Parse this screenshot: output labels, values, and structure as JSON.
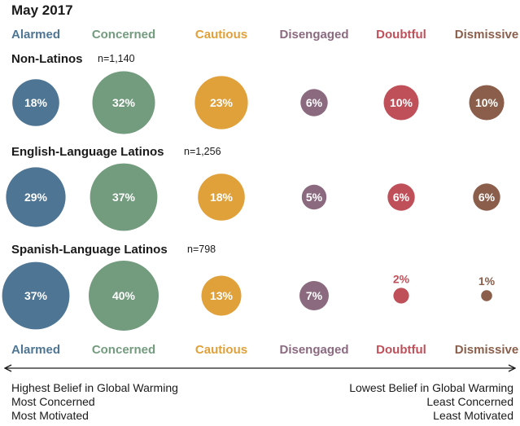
{
  "title": "May 2017",
  "chart_data": {
    "type": "bubble",
    "title": "May 2017",
    "categories": [
      "Alarmed",
      "Concerned",
      "Cautious",
      "Disengaged",
      "Doubtful",
      "Dismissive"
    ],
    "colors": [
      "#4e7594",
      "#739b7e",
      "#e0a03a",
      "#8b6a80",
      "#bf5059",
      "#8a5e4a"
    ],
    "series": [
      {
        "name": "Non-Latinos",
        "n_label": "n=1,140",
        "values": [
          18,
          32,
          23,
          6,
          10,
          10
        ]
      },
      {
        "name": "English-Language Latinos",
        "n_label": "n=1,256",
        "values": [
          29,
          37,
          18,
          5,
          6,
          6
        ]
      },
      {
        "name": "Spanish-Language Latinos",
        "n_label": "n=798",
        "values": [
          37,
          40,
          13,
          7,
          2,
          1
        ]
      }
    ],
    "value_suffix": "%",
    "axis_left": [
      "Highest Belief in Global Warming",
      "Most Concerned",
      "Most Motivated"
    ],
    "axis_right": [
      "Lowest Belief in Global Warming",
      "Least Concerned",
      "Least Motivated"
    ]
  }
}
